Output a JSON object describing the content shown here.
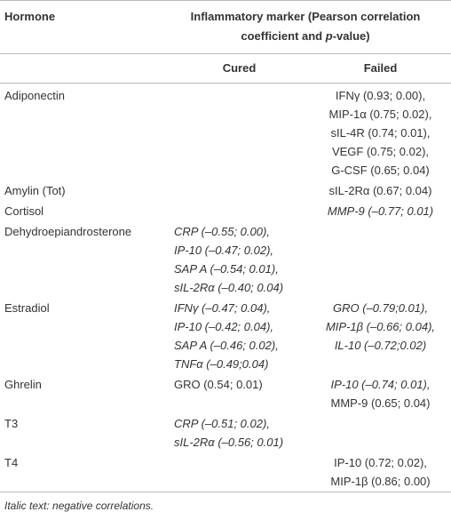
{
  "header": {
    "hormone": "Hormone",
    "marker_parts": [
      "Inflammatory marker (Pearson correlation coefficient and ",
      "p",
      "-value)"
    ],
    "cured": "Cured",
    "failed": "Failed"
  },
  "rows": [
    {
      "hormone": "Adiponectin",
      "cured": [],
      "failed": [
        {
          "text": "IFNγ (0.93; 0.00),",
          "italic": false
        },
        {
          "text": "MIP-1α (0.75; 0.02),",
          "italic": false
        },
        {
          "text": "sIL-4R (0.74; 0.01),",
          "italic": false
        },
        {
          "text": "VEGF (0.75; 0.02),",
          "italic": false
        },
        {
          "text": "G-CSF (0.65; 0.04)",
          "italic": false
        }
      ]
    },
    {
      "hormone": "Amylin (Tot)",
      "cured": [],
      "failed": [
        {
          "text": "sIL-2Rα (0.67; 0.04)",
          "italic": false
        }
      ]
    },
    {
      "hormone": "Cortisol",
      "cured": [],
      "failed": [
        {
          "text": "MMP-9 (–0.77; 0.01)",
          "italic": true
        }
      ]
    },
    {
      "hormone": "Dehydroepiandrosterone",
      "cured": [
        {
          "text": "CRP (–0.55; 0.00),",
          "italic": true
        },
        {
          "text": "IP-10 (–0.47; 0.02),",
          "italic": true
        },
        {
          "text": "SAP A (–0.54; 0.01),",
          "italic": true
        },
        {
          "text": "sIL-2Rα (–0.40; 0.04)",
          "italic": true
        }
      ],
      "failed": []
    },
    {
      "hormone": "Estradiol",
      "cured": [
        {
          "text": "IFNγ (–0.47; 0.04),",
          "italic": true
        },
        {
          "text": "IP-10 (–0.42; 0.04),",
          "italic": true
        },
        {
          "text": "SAP A (–0.46; 0.02),",
          "italic": true
        },
        {
          "text": "TNFα (–0.49;0.04)",
          "italic": true
        }
      ],
      "failed": [
        {
          "text": "GRO (–0.79;0.01),",
          "italic": true
        },
        {
          "text": "MIP-1β (–0.66; 0.04),",
          "italic": true
        },
        {
          "text": "IL-10 (–0.72;0.02)",
          "italic": true
        }
      ]
    },
    {
      "hormone": "Ghrelin",
      "cured": [
        {
          "text": "GRO (0.54; 0.01)",
          "italic": false
        }
      ],
      "failed": [
        {
          "text": "IP-10 (–0.74; 0.01),",
          "italic": true
        },
        {
          "text": "MMP-9 (0.65; 0.04)",
          "italic": false
        }
      ]
    },
    {
      "hormone": "T3",
      "cured": [
        {
          "text": "CRP (–0.51; 0.02),",
          "italic": true
        },
        {
          "text": "sIL-2Rα (–0.56; 0.01)",
          "italic": true
        }
      ],
      "failed": []
    },
    {
      "hormone": "T4",
      "cured": [],
      "failed": [
        {
          "text": "IP-10 (0.72; 0.02),",
          "italic": false
        },
        {
          "text": "MIP-1β (0.86; 0.00)",
          "italic": false
        }
      ]
    }
  ],
  "footnote": "Italic text: negative correlations."
}
